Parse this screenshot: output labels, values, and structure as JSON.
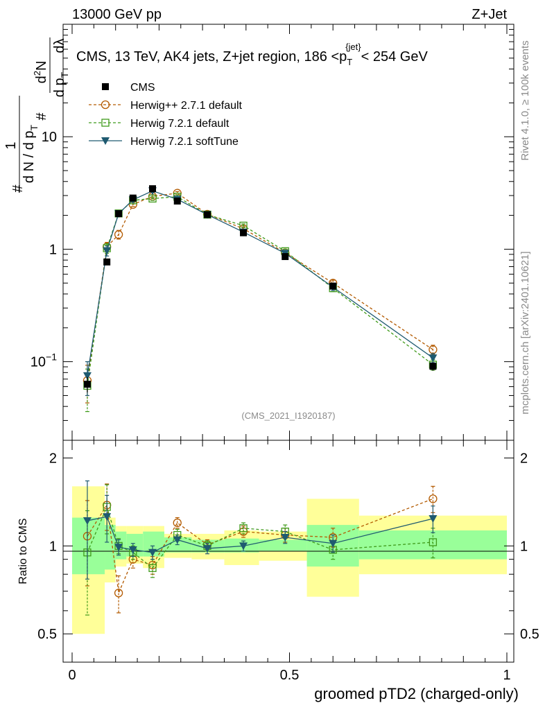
{
  "header": {
    "left": "13000 GeV pp",
    "right": "Z+Jet"
  },
  "chart_data": {
    "type": "line",
    "title": "CMS, 13 TeV, AK4 jets, Z+jet region, 186 <p_T^{jet}< 254 GeV",
    "title_parts": {
      "pre": "CMS, 13 TeV, AK4 jets, Z+jet region, 186 <p",
      "sub": "T",
      "sup": "{jet}",
      "post": "< 254 GeV"
    },
    "ylabel_parts": {
      "one": "1",
      "hash": "#",
      "denom": "d N / d p",
      "sub": "T",
      "d2n": "d",
      "d2n_sup": "2",
      "d2n_n": "N",
      "dpt": "d p",
      "dpt_sub": "T",
      "dlambda": "dλ"
    },
    "xlabel": "groomed pTD2 (charged-only)",
    "ratio_ylabel": "Ratio to CMS",
    "watermark": "(CMS_2021_I1920187)",
    "side_text_top": "Rivet 4.1.0, ≥ 100k events",
    "side_text_bottom": "mcplots.cern.ch [arXiv:2401.10621]",
    "xlim": [
      0,
      1
    ],
    "ylim": [
      0.02,
      100
    ],
    "ratio_ylim": [
      0.4,
      2.3
    ],
    "x_ticks": [
      {
        "value": 0,
        "label": "0"
      },
      {
        "value": 0.5,
        "label": "0.5"
      },
      {
        "value": 1,
        "label": "1"
      }
    ],
    "y_ticks": [
      {
        "value": 0.1,
        "label_base": "10",
        "label_exp": "−1"
      },
      {
        "value": 1,
        "label_base": "1",
        "label_exp": ""
      },
      {
        "value": 10,
        "label_base": "10",
        "label_exp": ""
      }
    ],
    "ratio_ticks": [
      {
        "value": 0.5,
        "label": "0.5"
      },
      {
        "value": 1,
        "label": "1"
      },
      {
        "value": 2,
        "label": "2"
      }
    ],
    "bins": [
      0.0,
      0.075,
      0.1,
      0.125,
      0.163,
      0.212,
      0.275,
      0.35,
      0.43,
      0.54,
      0.66,
      1.0
    ],
    "x": [
      0.035,
      0.08,
      0.107,
      0.14,
      0.185,
      0.242,
      0.311,
      0.394,
      0.49,
      0.6,
      0.83
    ],
    "band_inner": [
      [
        0.8,
        1.25
      ],
      [
        0.83,
        1.18
      ],
      [
        0.9,
        1.12
      ],
      [
        0.92,
        1.1
      ],
      [
        0.92,
        1.12
      ],
      [
        0.95,
        1.07
      ],
      [
        0.95,
        1.05
      ],
      [
        0.95,
        1.06
      ],
      [
        0.96,
        1.05
      ],
      [
        0.85,
        1.18
      ],
      [
        0.9,
        1.13
      ]
    ],
    "band_outer": [
      [
        0.5,
        1.6
      ],
      [
        0.75,
        1.25
      ],
      [
        0.85,
        1.17
      ],
      [
        0.87,
        1.17
      ],
      [
        0.84,
        1.17
      ],
      [
        0.91,
        1.1
      ],
      [
        0.9,
        1.1
      ],
      [
        0.86,
        1.13
      ],
      [
        0.89,
        1.12
      ],
      [
        0.67,
        1.45
      ],
      [
        0.8,
        1.27
      ]
    ],
    "series": [
      {
        "name": "CMS",
        "style": "data",
        "color": "#000000",
        "marker": "square-filled",
        "values": [
          0.063,
          0.77,
          2.07,
          2.85,
          3.45,
          2.68,
          2.03,
          1.4,
          0.86,
          0.47,
          0.091
        ],
        "errors": [
          0.01,
          0.05,
          0.1,
          0.12,
          0.14,
          0.1,
          0.07,
          0.05,
          0.04,
          0.03,
          0.008
        ]
      },
      {
        "name": "Herwig++ 2.7.1 default",
        "style": "dashed",
        "color": "#b35a00",
        "marker": "circle-open",
        "values": [
          0.068,
          1.05,
          1.35,
          2.5,
          2.95,
          3.15,
          2.05,
          1.52,
          0.93,
          0.5,
          0.128
        ],
        "errors": [
          0.025,
          0.1,
          0.12,
          0.1,
          0.1,
          0.1,
          0.06,
          0.06,
          0.04,
          0.03,
          0.012
        ],
        "ratio": [
          1.08,
          1.38,
          0.69,
          0.9,
          0.86,
          1.2,
          1.01,
          1.12,
          1.09,
          1.07,
          1.45
        ],
        "ratio_err": [
          0.35,
          0.25,
          0.1,
          0.06,
          0.06,
          0.05,
          0.04,
          0.05,
          0.06,
          0.08,
          0.15
        ]
      },
      {
        "name": "Herwig 7.2.1 default",
        "style": "dashed",
        "color": "#3f9a1a",
        "marker": "square-open",
        "values": [
          0.061,
          1.02,
          2.08,
          2.72,
          2.82,
          2.93,
          2.03,
          1.62,
          0.96,
          0.45,
          0.094
        ],
        "errors": [
          0.025,
          0.1,
          0.12,
          0.1,
          0.1,
          0.1,
          0.06,
          0.06,
          0.04,
          0.03,
          0.01
        ],
        "ratio": [
          0.95,
          1.36,
          1.0,
          0.95,
          0.84,
          1.09,
          1.0,
          1.15,
          1.12,
          0.97,
          1.03
        ],
        "ratio_err": [
          0.37,
          0.26,
          0.06,
          0.05,
          0.06,
          0.05,
          0.04,
          0.05,
          0.06,
          0.07,
          0.12
        ]
      },
      {
        "name": "Herwig 7.2.1 softTune",
        "style": "solid",
        "color": "#1f5a70",
        "marker": "triangle-down-filled",
        "values": [
          0.075,
          0.97,
          2.07,
          2.75,
          3.3,
          2.78,
          2.03,
          1.42,
          0.92,
          0.46,
          0.108
        ],
        "errors": [
          0.025,
          0.1,
          0.12,
          0.1,
          0.1,
          0.1,
          0.06,
          0.06,
          0.04,
          0.03,
          0.01
        ],
        "ratio": [
          1.22,
          1.26,
          0.99,
          0.97,
          0.95,
          1.05,
          0.98,
          1.0,
          1.07,
          1.02,
          1.24
        ],
        "ratio_err": [
          0.45,
          0.23,
          0.06,
          0.05,
          0.05,
          0.04,
          0.04,
          0.04,
          0.05,
          0.07,
          0.13
        ]
      }
    ]
  }
}
